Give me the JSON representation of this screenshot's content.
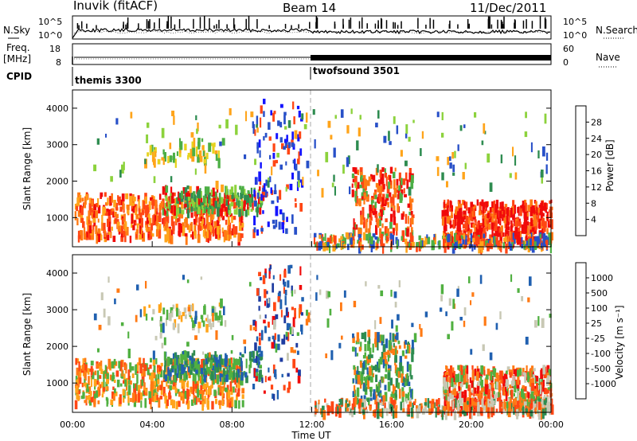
{
  "header": {
    "station": "Inuvik (fitACF)",
    "beam": "Beam 14",
    "date": "11/Dec/2011"
  },
  "left_labels": {
    "nsky": "N.Sky",
    "freq": "Freq.",
    "freq_unit": "[MHz]",
    "cpid": "CPID"
  },
  "right_labels": {
    "nsearch": "N.Search",
    "nave": "Nave"
  },
  "cpid_segments": [
    {
      "label": "themis 3300"
    },
    {
      "label": "twofsound 3501"
    }
  ],
  "chart_data": [
    {
      "type": "line",
      "title": "N.Sky / N.Search",
      "y_left_ticks": [
        "10^5",
        "10^0"
      ],
      "y_right_ticks": [
        "10^5",
        "10^0"
      ]
    },
    {
      "type": "line",
      "title": "Freq. / Nave",
      "y_left_ticks": [
        "18",
        "8"
      ],
      "y_right_ticks": [
        "60",
        "0"
      ]
    },
    {
      "type": "heatmap",
      "quantity": "Power",
      "ylabel": "Slant Range [km]",
      "yticks": [
        "1000",
        "2000",
        "3000",
        "4000"
      ],
      "ylim": [
        200,
        4500
      ],
      "xlim": [
        0,
        24
      ],
      "colorbar_label": "Power [dB]",
      "colorbar_ticks": [
        "4",
        "8",
        "12",
        "16",
        "20",
        "24",
        "28"
      ],
      "colors": [
        "#1414ff",
        "#2850c8",
        "#2e8c50",
        "#4caf45",
        "#8cd23c",
        "#e6d21e",
        "#ffa41a",
        "#ff7a14",
        "#ff4614",
        "#f00a0a"
      ]
    },
    {
      "type": "heatmap",
      "quantity": "Velocity",
      "ylabel": "Slant Range [km]",
      "yticks": [
        "1000",
        "2000",
        "3000",
        "4000"
      ],
      "ylim": [
        200,
        4500
      ],
      "xlim": [
        0,
        24
      ],
      "xlabel": "Time UT",
      "xticks": [
        "00:00",
        "04:00",
        "08:00",
        "12:00",
        "16:00",
        "20:00",
        "00:00"
      ],
      "colorbar_label": "Velocity [m s⁻¹]",
      "colorbar_ticks": [
        "1000",
        "500",
        "100",
        "25",
        "-25",
        "-100",
        "-500",
        "-1000"
      ],
      "colors": [
        "#1e3ca0",
        "#2060b0",
        "#2e8c50",
        "#50b040",
        "#c8c8b4",
        "#ffa41a",
        "#ff7a14",
        "#ff4614",
        "#f00a0a"
      ]
    }
  ]
}
